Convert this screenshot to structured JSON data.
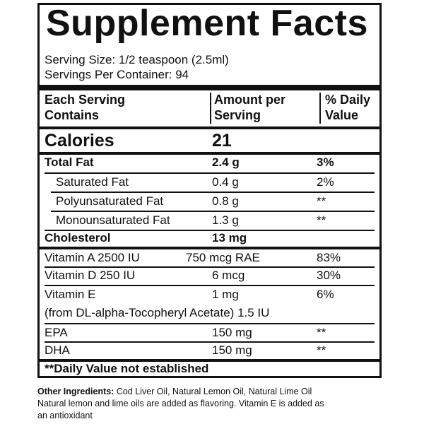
{
  "title": "Supplement Facts",
  "serving_size": "Serving Size: 1/2 teaspoon (2.5ml)",
  "servings_per_container": "Servings Per Container: 94",
  "header": {
    "col1_line1": "Each Serving",
    "col1_line2": "Contains",
    "col2_line1": "Amount per",
    "col2_line2": "Serving",
    "col3_line1": "% Daily",
    "col3_line2": "Value"
  },
  "calories": {
    "label": "Calories",
    "amount": "21"
  },
  "rows": {
    "total_fat": {
      "name": "Total Fat",
      "amount": "2.4 g",
      "dv": "3%"
    },
    "saturated_fat": {
      "name": "Saturated Fat",
      "amount": "0.4 g",
      "dv": "2%"
    },
    "polyunsaturated_fat": {
      "name": "Polyunsaturated Fat",
      "amount": "0.8 g",
      "dv": "**"
    },
    "monounsaturated_fat": {
      "name": "Monounsaturated Fat",
      "amount": "1.3 g",
      "dv": "**"
    },
    "cholesterol": {
      "name": "Cholesterol",
      "amount": "13 mg",
      "dv": ""
    },
    "vitamin_a": {
      "name": "Vitamin A 2500 IU",
      "amount": "750 mcg RAE",
      "dv": "83%"
    },
    "vitamin_d": {
      "name": "Vitamin D 250 IU",
      "amount": "6 mcg",
      "dv": "30%"
    },
    "vitamin_e": {
      "name": "Vitamin E",
      "amount": "1 mg",
      "dv": "6%",
      "note": "(from DL-alpha-Tocopheryl Acetate) 1.5 IU"
    },
    "epa": {
      "name": "EPA",
      "amount": "150 mg",
      "dv": "**"
    },
    "dha": {
      "name": "DHA",
      "amount": "150 mg",
      "dv": "**"
    }
  },
  "footnote": "**Daily Value not established",
  "other_ingredients": {
    "label": "Other Ingredients:",
    "text": " Cod Liver Oil, Natural Lemon Oil, Natural Lime Oil",
    "line2": "Natural lemon and lime oils are added as flavoring. Vitamin E is added as",
    "line3": "an antioxidant"
  }
}
